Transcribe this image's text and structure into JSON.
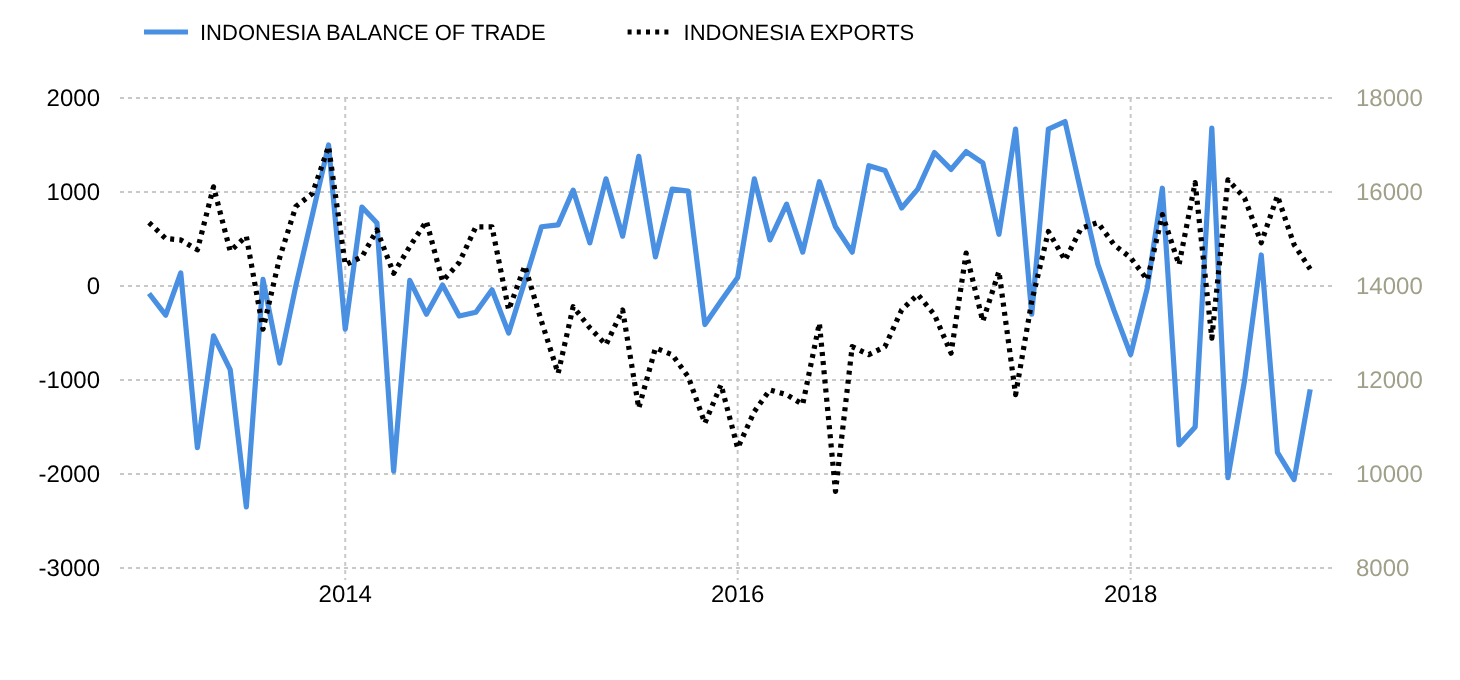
{
  "chart_data": {
    "type": "line",
    "legend": "top left",
    "grid": true,
    "x": [
      "2013-01",
      "2013-02",
      "2013-03",
      "2013-04",
      "2013-05",
      "2013-06",
      "2013-07",
      "2013-08",
      "2013-09",
      "2013-10",
      "2013-11",
      "2013-12",
      "2014-01",
      "2014-02",
      "2014-03",
      "2014-04",
      "2014-05",
      "2014-06",
      "2014-07",
      "2014-08",
      "2014-09",
      "2014-10",
      "2014-11",
      "2014-12",
      "2015-01",
      "2015-02",
      "2015-03",
      "2015-04",
      "2015-05",
      "2015-06",
      "2015-07",
      "2015-08",
      "2015-09",
      "2015-10",
      "2015-11",
      "2015-12",
      "2016-01",
      "2016-02",
      "2016-03",
      "2016-04",
      "2016-05",
      "2016-06",
      "2016-07",
      "2016-08",
      "2016-09",
      "2016-10",
      "2016-11",
      "2016-12",
      "2017-01",
      "2017-02",
      "2017-03",
      "2017-04",
      "2017-05",
      "2017-06",
      "2017-07",
      "2017-08",
      "2017-09",
      "2017-10",
      "2017-11",
      "2017-12",
      "2018-01",
      "2018-02",
      "2018-03",
      "2018-04",
      "2018-05",
      "2018-06",
      "2018-07",
      "2018-08",
      "2018-09",
      "2018-10",
      "2018-11",
      "2018-12"
    ],
    "xlim": [
      "2012-11-08",
      "2019-01-18"
    ],
    "xticks": [
      "2014",
      "2016",
      "2018"
    ],
    "ylim": [
      -3000,
      2000
    ],
    "yticks": [
      -3000,
      -2000,
      -1000,
      0,
      1000,
      2000
    ],
    "y2lim": [
      8000,
      18000
    ],
    "y2ticks": [
      8000,
      10000,
      12000,
      14000,
      16000,
      18000
    ],
    "series": [
      {
        "name": "INDONESIA BALANCE OF TRADE",
        "color": "#4a90e2",
        "line_style": "solid",
        "values": [
          -80,
          -310,
          140,
          -1720,
          -530,
          -890,
          -2350,
          70,
          -820,
          0,
          760,
          1500,
          -460,
          840,
          670,
          -1970,
          60,
          -300,
          10,
          -320,
          -280,
          -40,
          -500,
          50,
          630,
          650,
          1020,
          460,
          1140,
          530,
          1380,
          310,
          1030,
          1010,
          -410,
          -160,
          90,
          1140,
          490,
          870,
          360,
          1110,
          630,
          360,
          1280,
          1230,
          830,
          1030,
          1420,
          1240,
          1430,
          1310,
          550,
          1670,
          -300,
          1670,
          1750,
          990,
          230,
          -260,
          -730,
          -20,
          1040,
          -1690,
          -1500,
          1680,
          -2040,
          -1000,
          330,
          -1770,
          -2060,
          -1100
        ]
      },
      {
        "name": "INDONESIA EXPORTS",
        "color": "#000000",
        "axis": "y2",
        "line_style": "dotted",
        "values": [
          15350,
          15010,
          14980,
          14770,
          16110,
          14740,
          15060,
          13080,
          14600,
          15690,
          15970,
          16970,
          14450,
          14620,
          15190,
          14270,
          14840,
          15380,
          14100,
          14500,
          15260,
          15260,
          13490,
          14430,
          13250,
          12140,
          13560,
          13110,
          12750,
          13490,
          11400,
          12680,
          12540,
          12070,
          11080,
          11900,
          10550,
          11330,
          11790,
          11690,
          11480,
          13210,
          9630,
          12710,
          12540,
          12710,
          13490,
          13820,
          13390,
          12570,
          14700,
          13250,
          14310,
          11690,
          13670,
          15160,
          14550,
          15230,
          15350,
          14880,
          14600,
          14130,
          15520,
          14450,
          16200,
          12890,
          16260,
          15870,
          14920,
          15920,
          14880,
          14360
        ]
      }
    ]
  }
}
